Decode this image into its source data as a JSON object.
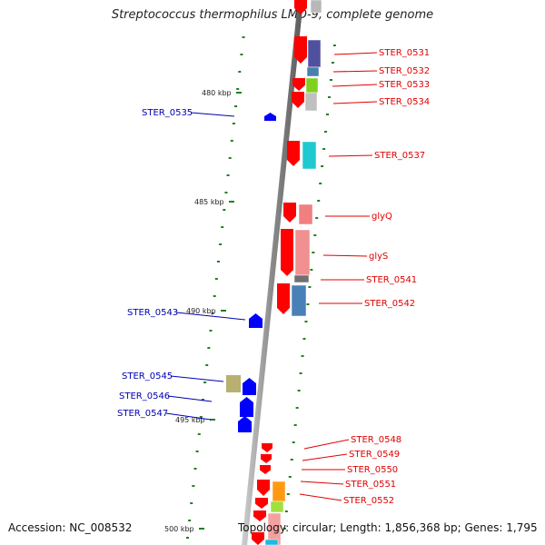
{
  "title": "Streptococcus thermophilus LMD-9, complete genome",
  "footer": {
    "accession": "Accession: NC_008532",
    "topology": "Topology: circular; Length: 1,856,368 bp; Genes: 1,795"
  },
  "scale_labels": [
    "480 kbp",
    "485 kbp",
    "490 kbp",
    "495 kbp",
    "500 kbp"
  ],
  "genes_reverse": [
    "STER_0535",
    "STER_0543",
    "STER_0545",
    "STER_0546",
    "STER_0547"
  ],
  "genes_forward": [
    "STER_0531",
    "STER_0532",
    "STER_0533",
    "STER_0534",
    "STER_0537",
    "glyQ",
    "glyS",
    "STER_0541",
    "STER_0542",
    "STER_0548",
    "STER_0549",
    "STER_0550",
    "STER_0551",
    "STER_0552"
  ],
  "colors": {
    "forward_label": "#e00000",
    "reverse_label": "#0000b0",
    "forward_arrow": "#ff0000",
    "reverse_arrow": "#0000ff",
    "tick": "#208020",
    "backbone": "#8a8a8a"
  }
}
